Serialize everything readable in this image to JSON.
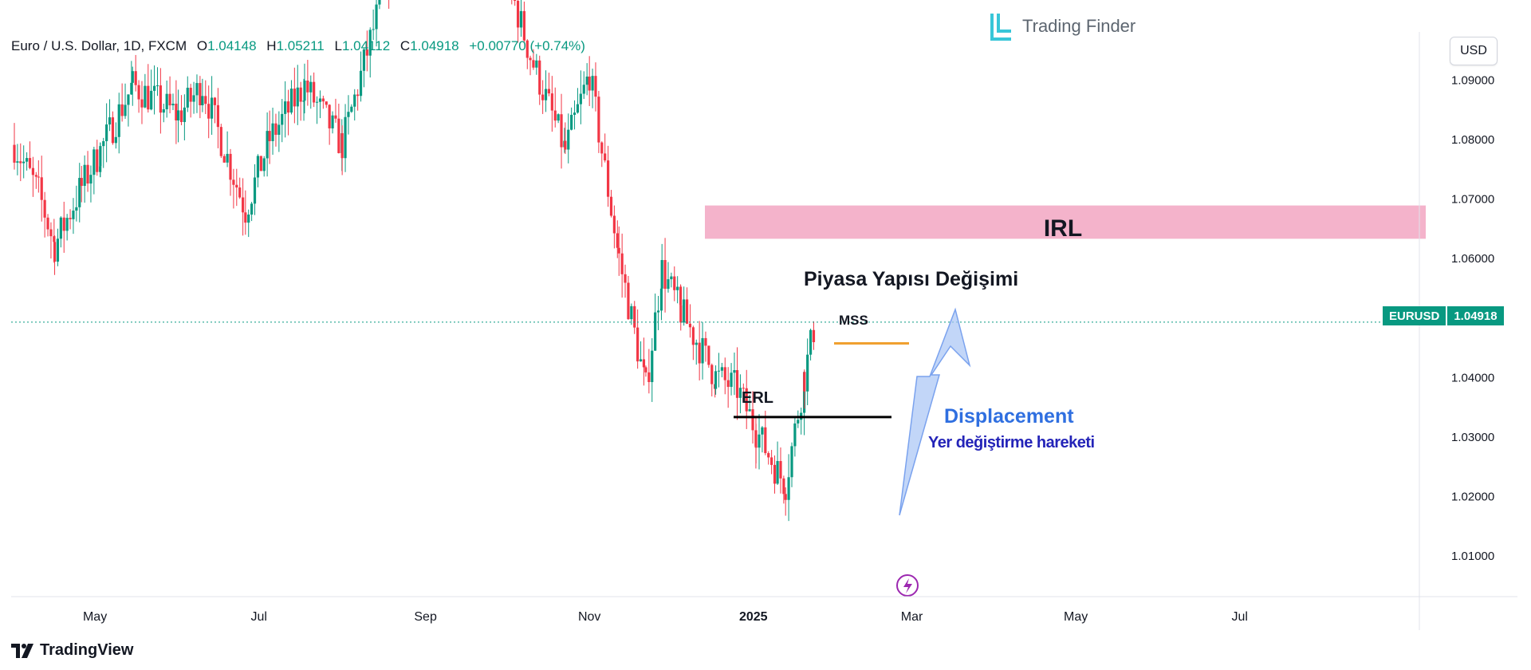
{
  "legend": {
    "title": "Euro / U.S. Dollar, 1D, FXCM",
    "open_label": "O",
    "open": "1.04148",
    "high_label": "H",
    "high": "1.05211",
    "low_label": "L",
    "low": "1.04112",
    "close_label": "C",
    "close": "1.04918",
    "change": "+0.00770 (+0.74%)"
  },
  "currency": "USD",
  "brand": "Trading Finder",
  "price_tag": {
    "symbol": "EURUSD",
    "price": "1.04918"
  },
  "footer_logo": "TradingView",
  "colors": {
    "up": "#089981",
    "down": "#f23645",
    "irl_zone": "#f4b3cb",
    "mss_line": "#f0a030",
    "arrow": "#a8c4f5",
    "displacement_text": "#2f6fe0",
    "sub_text": "#2424b8",
    "brand_icon": "#38c6d8"
  },
  "annotations": {
    "irl": "IRL",
    "mss_title": "Piyasa Yapısı Değişimi",
    "mss": "MSS",
    "erl": "ERL",
    "displacement": "Displacement",
    "displacement_sub": "Yer değiştirme hareketi"
  },
  "chart_data": {
    "type": "candlestick",
    "title": "Euro / U.S. Dollar, 1D, FXCM",
    "ylim": [
      1.003,
      1.098
    ],
    "y_ticks": [
      "1.01000",
      "1.02000",
      "1.03000",
      "1.04000",
      "1.05000",
      "1.06000",
      "1.07000",
      "1.08000",
      "1.09000"
    ],
    "x_ticks": [
      "May",
      "Jul",
      "Sep",
      "Nov",
      "2025",
      "Mar",
      "May",
      "Jul"
    ],
    "last_price": 1.04918,
    "levels": {
      "irl_zone": [
        1.0632,
        1.0688
      ],
      "mss": 1.0456,
      "erl": 1.0332
    },
    "price_path": [
      {
        "t": "Apr 01",
        "v": 1.079
      },
      {
        "t": "Apr 10",
        "v": 1.071
      },
      {
        "t": "Apr 16",
        "v": 1.062
      },
      {
        "t": "Apr 26",
        "v": 1.072
      },
      {
        "t": "May 03",
        "v": 1.078
      },
      {
        "t": "May 15",
        "v": 1.089
      },
      {
        "t": "Jun 01",
        "v": 1.084
      },
      {
        "t": "Jun 10",
        "v": 1.089
      },
      {
        "t": "Jun 26",
        "v": 1.068
      },
      {
        "t": "Jul 05",
        "v": 1.08
      },
      {
        "t": "Jul 18",
        "v": 1.089
      },
      {
        "t": "Aug 01",
        "v": 1.079
      },
      {
        "t": "Aug 23",
        "v": 1.116
      },
      {
        "t": "Sep 25",
        "v": 1.117
      },
      {
        "t": "Oct 10",
        "v": 1.094
      },
      {
        "t": "Oct 23",
        "v": 1.078
      },
      {
        "t": "Nov 01",
        "v": 1.091
      },
      {
        "t": "Nov 12",
        "v": 1.06
      },
      {
        "t": "Nov 22",
        "v": 1.038
      },
      {
        "t": "Nov 28",
        "v": 1.058
      },
      {
        "t": "Dec 05",
        "v": 1.051
      },
      {
        "t": "Dec 18",
        "v": 1.04
      },
      {
        "t": "Dec 26",
        "v": 1.038
      },
      {
        "t": "Jan 02",
        "v": 1.031
      },
      {
        "t": "Jan 10",
        "v": 1.024
      },
      {
        "t": "Jan 13",
        "v": 1.022
      },
      {
        "t": "Jan 20",
        "v": 1.04
      },
      {
        "t": "Jan 24",
        "v": 1.049
      }
    ]
  }
}
